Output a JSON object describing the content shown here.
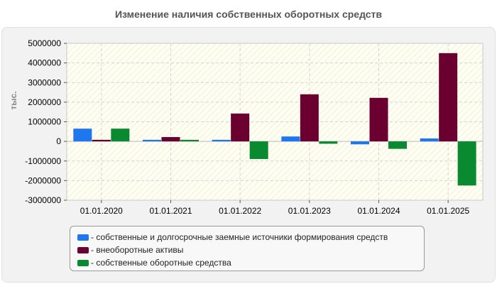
{
  "chart_data": {
    "type": "bar",
    "title": "Изменение наличия собственных оборотных средств",
    "xlabel": "",
    "ylabel": "тыс.",
    "ylim": [
      -3000000,
      5000000
    ],
    "y_ticks": [
      5000000,
      4000000,
      3000000,
      2000000,
      1000000,
      0,
      -1000000,
      -2000000,
      -3000000
    ],
    "y_tick_labels": [
      "5000000",
      "4000000",
      "3000000",
      "2000000",
      "1000000",
      "0",
      "-1000000",
      "-2000000",
      "-3000000"
    ],
    "grid": true,
    "legend_position": "bottom",
    "categories": [
      "01.01.2020",
      "01.01.2021",
      "01.01.2022",
      "01.01.2023",
      "01.01.2024",
      "01.01.2025"
    ],
    "series": [
      {
        "name": "собственные и долгосрочные заемные источники формирования средств",
        "color": "#1f77f0",
        "values": [
          650000,
          80000,
          80000,
          250000,
          -150000,
          150000
        ]
      },
      {
        "name": "внеоборотные активы",
        "color": "#6b0030",
        "values": [
          80000,
          220000,
          1420000,
          2400000,
          2220000,
          4500000
        ]
      },
      {
        "name": "собственные оборотные средства",
        "color": "#0a8a30",
        "values": [
          650000,
          80000,
          -900000,
          -120000,
          -380000,
          -2250000
        ]
      }
    ]
  }
}
